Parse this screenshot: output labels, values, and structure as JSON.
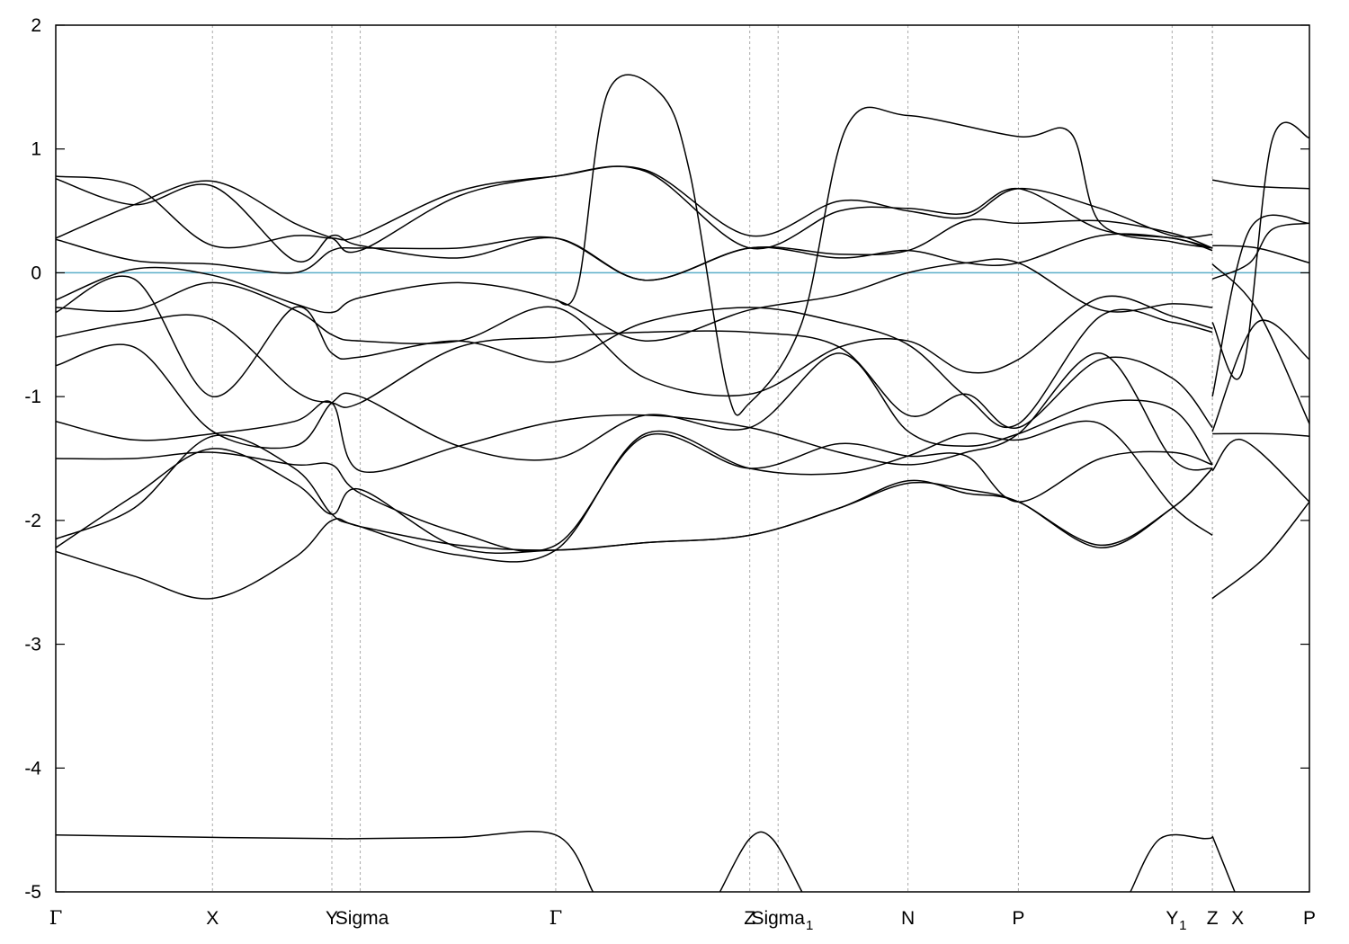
{
  "chart_data": {
    "type": "line",
    "title": "",
    "xlabel": "",
    "ylabel": "",
    "ylim": [
      -5,
      2
    ],
    "yticks": [
      -5,
      -4,
      -3,
      -2,
      -1,
      0,
      1,
      2
    ],
    "grid": "vertical dashed at high-symmetry points",
    "fermi_level": 0,
    "colors": {
      "bands": "#000000",
      "fermi": "#5aaec8",
      "grid": "#aaaaaa"
    },
    "kpoints": [
      {
        "x": 0.0,
        "label": "Γ",
        "sub": ""
      },
      {
        "x": 2.1,
        "label": "X",
        "sub": ""
      },
      {
        "x": 3.7,
        "label": "Y",
        "sub": ""
      },
      {
        "x": 4.08,
        "label": "Sigma",
        "sub": ""
      },
      {
        "x": 6.7,
        "label": "Γ",
        "sub": ""
      },
      {
        "x": 9.3,
        "label": "Z",
        "sub": ""
      },
      {
        "x": 9.68,
        "label": "Sigma",
        "sub": "1"
      },
      {
        "x": 11.42,
        "label": "N",
        "sub": ""
      },
      {
        "x": 12.9,
        "label": "P",
        "sub": ""
      },
      {
        "x": 14.96,
        "label": "Y",
        "sub": "1"
      },
      {
        "x": 15.5,
        "label": "Z",
        "sub": ""
      },
      {
        "x": 15.5,
        "label": "X",
        "sub": ""
      },
      {
        "x": 16.8,
        "label": "P",
        "sub": ""
      }
    ],
    "series": [
      {
        "segment": 0,
        "x": [
          0,
          1.05,
          2.1,
          3.2,
          3.7,
          4.08,
          5.4,
          6.7,
          7.9,
          9.3,
          10.5,
          11.42,
          12.2,
          12.9,
          14.0,
          14.96,
          15.5
        ],
        "y": [
          0.78,
          0.7,
          0.22,
          0.3,
          0.28,
          0.3,
          0.66,
          0.78,
          0.83,
          0.3,
          0.58,
          0.5,
          0.45,
          0.68,
          0.52,
          0.3,
          0.31
        ]
      },
      {
        "segment": 0,
        "x": [
          0,
          1.05,
          2.1,
          3.2,
          3.7,
          4.08,
          5.4,
          6.7,
          7.9,
          9.3,
          10.5,
          11.42,
          12.2,
          12.9,
          14.0,
          14.96,
          15.5
        ],
        "y": [
          0.28,
          0.55,
          0.74,
          0.4,
          0.28,
          0.18,
          0.62,
          0.78,
          0.82,
          0.2,
          0.5,
          0.52,
          0.48,
          0.68,
          0.35,
          0.28,
          0.2
        ]
      },
      {
        "segment": 0,
        "x": [
          0,
          1.05,
          2.1,
          3.2,
          3.7,
          4.08,
          5.4,
          6.7,
          7.9,
          9.3,
          10.5,
          11.42,
          12.2,
          12.9,
          14.0,
          14.96,
          15.5
        ],
        "y": [
          0.76,
          0.55,
          0.7,
          0.1,
          0.3,
          0.22,
          0.12,
          0.28,
          -0.06,
          0.2,
          0.15,
          0.18,
          0.42,
          0.4,
          0.42,
          0.32,
          0.2
        ]
      },
      {
        "segment": 0,
        "x": [
          0,
          1.05,
          2.1,
          3.2,
          3.7,
          4.08,
          5.4,
          6.7,
          7.9,
          9.3,
          10.5,
          11.42,
          12.2,
          12.9,
          14.0,
          14.96,
          15.5
        ],
        "y": [
          0.27,
          0.1,
          0.07,
          0.0,
          0.18,
          0.2,
          0.2,
          0.28,
          -0.06,
          0.2,
          0.12,
          0.18,
          0.08,
          0.08,
          0.3,
          0.28,
          0.18
        ]
      },
      {
        "segment": 0,
        "x": [
          0,
          1.05,
          2.1,
          3.2,
          3.7,
          4.08,
          5.4,
          6.7,
          7.9,
          9.3,
          10.5,
          11.42,
          12.2,
          12.9,
          14.0,
          14.96,
          15.5
        ],
        "y": [
          -0.22,
          0.03,
          -0.02,
          -0.25,
          -0.32,
          -0.2,
          -0.08,
          -0.22,
          -0.55,
          -0.3,
          -0.18,
          0.0,
          0.08,
          0.08,
          -0.3,
          -0.25,
          -0.28
        ]
      },
      {
        "segment": 0,
        "x": [
          0,
          1.05,
          2.1,
          3.2,
          3.7,
          4.08,
          5.4,
          6.7,
          7.9,
          9.3,
          10.5,
          11.42,
          12.2,
          12.9,
          14.0,
          14.96,
          15.5
        ],
        "y": [
          -0.28,
          -0.3,
          -0.08,
          -0.3,
          -0.5,
          -0.55,
          -0.55,
          -0.28,
          -0.85,
          -0.98,
          -0.6,
          -0.55,
          -0.8,
          -0.7,
          -0.2,
          -0.35,
          -0.45
        ]
      },
      {
        "segment": 0,
        "x": [
          0,
          1.05,
          2.1,
          3.2,
          3.7,
          4.08,
          5.4,
          6.7,
          7.9,
          9.3,
          10.5,
          11.42,
          12.2,
          12.9,
          14.0,
          14.96,
          15.5
        ],
        "y": [
          -0.32,
          -0.05,
          -1.0,
          -0.28,
          -0.65,
          -0.68,
          -0.55,
          -0.72,
          -0.4,
          -0.28,
          -0.4,
          -0.58,
          -1.0,
          -1.22,
          -0.35,
          -0.4,
          -0.48
        ]
      },
      {
        "segment": 0,
        "x": [
          0,
          1.05,
          2.1,
          3.2,
          3.7,
          4.08,
          5.4,
          6.7,
          7.9,
          9.3,
          10.5,
          11.42,
          12.2,
          12.9,
          14.0,
          14.96,
          15.5
        ],
        "y": [
          -0.52,
          -0.4,
          -0.38,
          -0.95,
          -1.05,
          -1.05,
          -0.6,
          -0.52,
          -0.48,
          -0.48,
          -0.6,
          -1.15,
          -0.98,
          -1.25,
          -0.7,
          -0.85,
          -1.25
        ]
      },
      {
        "segment": 0,
        "x": [
          0,
          1.05,
          2.1,
          3.2,
          3.7,
          4.08,
          5.4,
          6.7,
          7.9,
          9.3,
          10.5,
          11.42,
          12.2,
          12.9,
          14.0,
          14.96,
          15.5
        ],
        "y": [
          -0.75,
          -0.6,
          -1.28,
          -1.4,
          -1.05,
          -1.0,
          -1.4,
          -1.5,
          -1.15,
          -1.25,
          -0.65,
          -1.28,
          -1.4,
          -1.3,
          -1.05,
          -1.1,
          -1.55
        ]
      },
      {
        "segment": 0,
        "x": [
          0,
          1.05,
          2.1,
          3.2,
          3.7,
          4.08,
          5.4,
          6.7,
          7.9,
          9.3,
          10.5,
          11.42,
          12.2,
          12.9,
          14.0,
          14.96,
          15.5
        ],
        "y": [
          -1.2,
          -1.35,
          -1.3,
          -1.2,
          -1.05,
          -1.6,
          -1.4,
          -1.2,
          -1.15,
          -1.25,
          -1.45,
          -1.55,
          -1.45,
          -1.3,
          -0.65,
          -1.5,
          -1.58
        ]
      },
      {
        "segment": 0,
        "x": [
          0,
          1.05,
          2.1,
          3.2,
          3.7,
          4.08,
          5.4,
          6.7,
          7.9,
          9.3,
          10.5,
          11.42,
          12.2,
          12.9,
          14.0,
          14.96,
          15.5
        ],
        "y": [
          -1.5,
          -1.5,
          -1.45,
          -1.55,
          -1.55,
          -1.78,
          -2.1,
          -2.2,
          -1.32,
          -1.58,
          -1.38,
          -1.48,
          -1.48,
          -1.85,
          -1.5,
          -1.45,
          -1.55
        ]
      },
      {
        "segment": 0,
        "x": [
          0,
          1.05,
          2.1,
          3.2,
          3.7,
          4.08,
          5.4,
          6.7,
          7.9,
          9.3,
          10.5,
          11.42,
          12.2,
          12.9,
          14.0,
          14.96,
          15.5
        ],
        "y": [
          -2.15,
          -1.9,
          -1.32,
          -1.58,
          -1.95,
          -2.05,
          -2.28,
          -2.24,
          -1.3,
          -1.58,
          -1.62,
          -1.48,
          -1.3,
          -1.35,
          -1.22,
          -1.88,
          -2.12
        ]
      },
      {
        "segment": 0,
        "x": [
          0,
          1.05,
          2.1,
          3.2,
          3.7,
          4.08,
          5.4,
          6.7,
          7.9,
          9.3,
          10.5,
          11.42,
          12.2,
          12.9,
          14.0,
          14.96,
          15.5
        ],
        "y": [
          -2.22,
          -1.8,
          -1.42,
          -1.7,
          -1.95,
          -1.75,
          -2.22,
          -2.24,
          -2.18,
          -2.12,
          -1.9,
          -1.68,
          -1.78,
          -1.85,
          -2.22,
          -1.9,
          -1.58
        ]
      },
      {
        "segment": 0,
        "x": [
          0,
          1.05,
          2.1,
          3.2,
          3.7,
          4.08,
          5.4,
          6.7,
          7.9,
          9.3,
          10.5,
          11.42,
          12.2,
          12.9,
          14.0,
          14.96,
          15.5
        ],
        "y": [
          -2.25,
          -2.45,
          -2.63,
          -2.3,
          -2.0,
          -2.05,
          -2.2,
          -2.24,
          -2.18,
          -2.12,
          -1.9,
          -1.7,
          -1.75,
          -1.85,
          -2.2,
          -1.9,
          -1.58
        ]
      },
      {
        "segment": 0,
        "x": [
          6.7,
          7.0,
          7.4,
          8.1,
          8.5,
          9.0,
          9.3,
          10.0,
          10.6,
          11.42,
          12.9,
          13.6,
          14.0,
          14.96,
          15.5
        ],
        "y": [
          -0.22,
          -0.1,
          1.46,
          1.45,
          0.8,
          -0.95,
          -1.05,
          -0.4,
          1.18,
          1.27,
          1.1,
          1.13,
          0.4,
          0.25,
          0.2
        ]
      },
      {
        "segment": 0,
        "x": [
          0,
          2.1,
          3.7,
          4.08,
          5.4,
          6.7,
          7.2
        ],
        "y": [
          -4.54,
          -4.56,
          -4.57,
          -4.57,
          -4.56,
          -4.54,
          -5.0
        ]
      },
      {
        "segment": 0,
        "x": [
          8.9,
          9.3,
          9.6,
          10.0
        ],
        "y": [
          -5.0,
          -4.57,
          -4.57,
          -5.0
        ]
      },
      {
        "segment": 0,
        "x": [
          14.4,
          14.8,
          15.4,
          15.5
        ],
        "y": [
          -5.0,
          -4.57,
          -4.57,
          -4.56
        ]
      },
      {
        "segment": 1,
        "x": [
          15.5,
          16.0,
          16.8
        ],
        "y": [
          0.75,
          0.7,
          0.68
        ]
      },
      {
        "segment": 1,
        "x": [
          15.5,
          15.9,
          16.3,
          16.8
        ],
        "y": [
          -0.4,
          -0.8,
          1.07,
          1.09
        ]
      },
      {
        "segment": 1,
        "x": [
          15.5,
          16.1,
          16.8
        ],
        "y": [
          0.22,
          0.2,
          0.08
        ]
      },
      {
        "segment": 1,
        "x": [
          15.5,
          16.0,
          16.3,
          16.8
        ],
        "y": [
          -0.05,
          0.08,
          0.35,
          0.4
        ]
      },
      {
        "segment": 1,
        "x": [
          15.5,
          16.0,
          16.8
        ],
        "y": [
          -1.0,
          0.35,
          0.4
        ]
      },
      {
        "segment": 1,
        "x": [
          15.5,
          16.1,
          16.8
        ],
        "y": [
          0.07,
          -0.3,
          -1.22
        ]
      },
      {
        "segment": 1,
        "x": [
          15.5,
          16.1,
          16.8
        ],
        "y": [
          -1.28,
          -0.4,
          -0.7
        ]
      },
      {
        "segment": 1,
        "x": [
          15.5,
          16.3,
          16.8
        ],
        "y": [
          -1.3,
          -1.3,
          -1.32
        ]
      },
      {
        "segment": 1,
        "x": [
          15.5,
          15.9,
          16.8
        ],
        "y": [
          -1.6,
          -1.35,
          -1.85
        ]
      },
      {
        "segment": 1,
        "x": [
          15.5,
          16.2,
          16.8
        ],
        "y": [
          -2.63,
          -2.3,
          -1.85
        ]
      },
      {
        "segment": 1,
        "x": [
          15.5,
          15.8
        ],
        "y": [
          -4.55,
          -5.0
        ]
      }
    ]
  }
}
